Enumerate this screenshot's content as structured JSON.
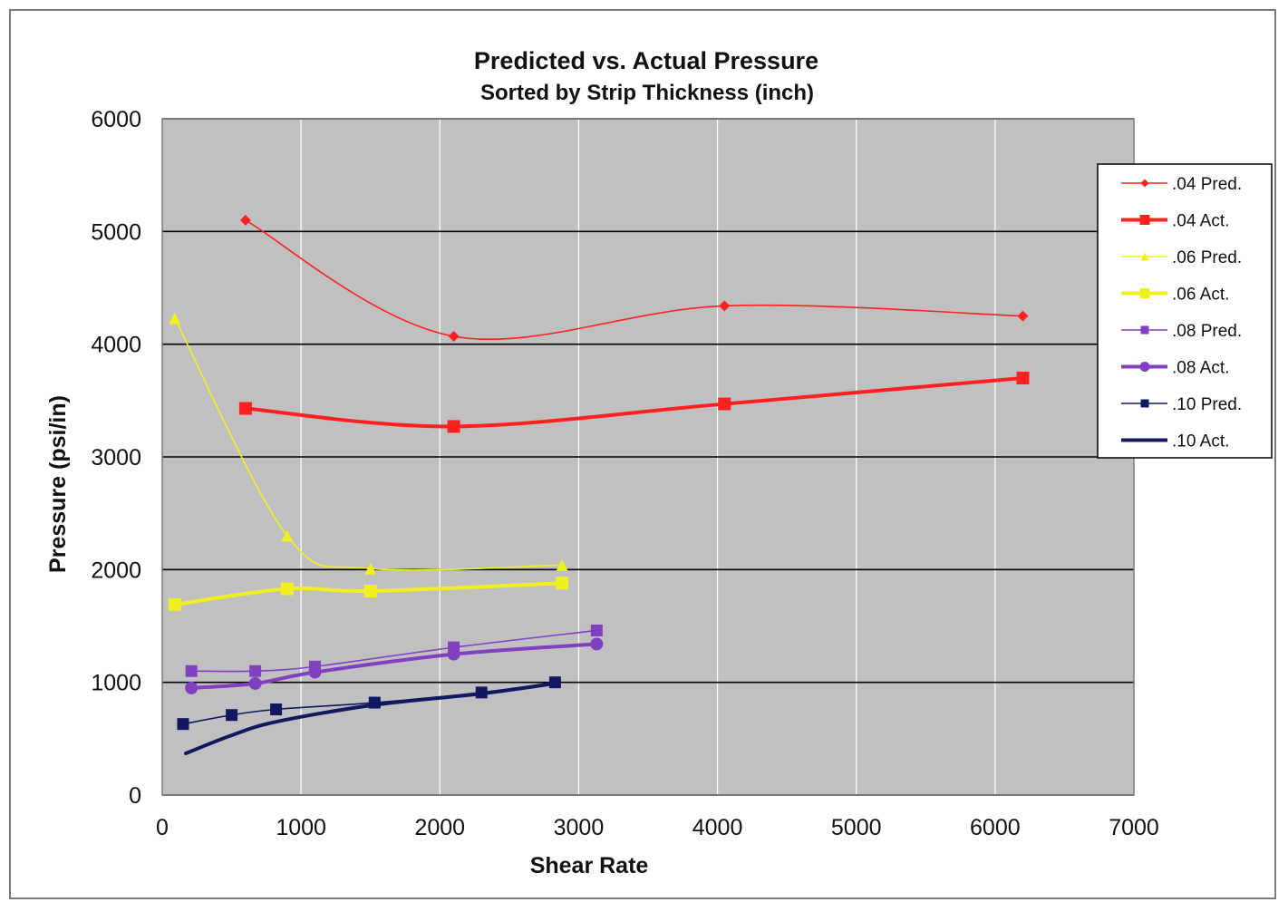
{
  "chart_data": {
    "type": "line",
    "title": "Predicted vs. Actual Pressure",
    "subtitle": "Sorted by  Strip  Thickness  (inch)",
    "xlabel": "Shear Rate",
    "ylabel": "Pressure  (psi/in)",
    "xlim": [
      0,
      7000
    ],
    "ylim": [
      0,
      6000
    ],
    "xticks": [
      0,
      1000,
      2000,
      3000,
      4000,
      5000,
      6000,
      7000
    ],
    "yticks": [
      0,
      1000,
      2000,
      3000,
      4000,
      5000,
      6000
    ],
    "grid": true,
    "smoothed": true,
    "plot_background": "#c0c0c0",
    "legend_position": "right",
    "series": [
      {
        "name": ".04 Pred.",
        "color": "#ff2020",
        "marker": "diamond",
        "line": "thin",
        "x": [
          600,
          2100,
          4050,
          6200
        ],
        "y": [
          5100,
          4070,
          4340,
          4250
        ]
      },
      {
        "name": ".04 Act.",
        "color": "#ff2020",
        "marker": "square",
        "line": "thick",
        "x": [
          600,
          2100,
          4050,
          6200
        ],
        "y": [
          3430,
          3270,
          3470,
          3700
        ]
      },
      {
        "name": ".06 Pred.",
        "color": "#f0f020",
        "marker": "triangle",
        "line": "thin",
        "x": [
          90,
          900,
          1500,
          2880
        ],
        "y": [
          4230,
          2300,
          2010,
          2040
        ]
      },
      {
        "name": ".06 Act.",
        "color": "#f0f020",
        "marker": "square",
        "line": "thick",
        "x": [
          90,
          900,
          1500,
          2880
        ],
        "y": [
          1690,
          1830,
          1810,
          1880
        ]
      },
      {
        "name": ".08 Pred.",
        "color": "#8040c0",
        "marker": "square",
        "line": "thin",
        "x": [
          210,
          670,
          1100,
          2100,
          3130
        ],
        "y": [
          1100,
          1100,
          1140,
          1310,
          1460
        ]
      },
      {
        "name": ".08 Act.",
        "color": "#8040c0",
        "marker": "circle",
        "line": "thick",
        "x": [
          210,
          670,
          1100,
          2100,
          3130
        ],
        "y": [
          950,
          990,
          1090,
          1250,
          1340
        ]
      },
      {
        "name": ".10 Pred.",
        "color": "#101860",
        "marker": "square",
        "line": "thin",
        "x": [
          150,
          500,
          820,
          1530,
          2300,
          2830
        ],
        "y": [
          630,
          710,
          760,
          820,
          910,
          1000
        ]
      },
      {
        "name": ".10 Act.",
        "color": "#101860",
        "marker": "none",
        "line": "thick",
        "x": [
          170,
          500,
          820,
          1530,
          2300,
          2830
        ],
        "y": [
          370,
          530,
          650,
          800,
          900,
          990
        ]
      }
    ]
  }
}
